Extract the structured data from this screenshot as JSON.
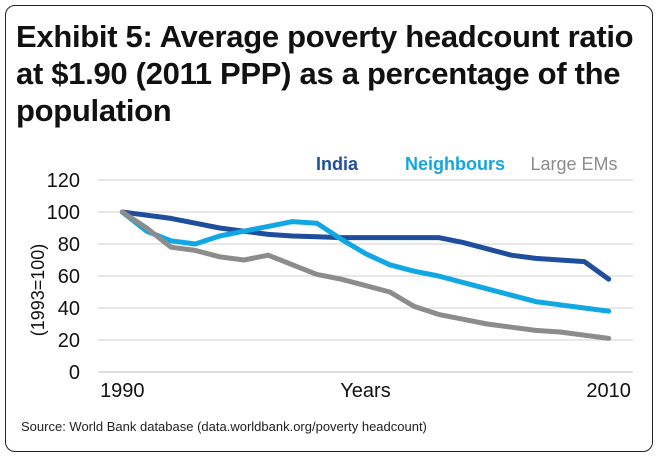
{
  "title": "Exhibit 5: Average poverty headcount ratio at $1.90 (2011 PPP) as a percentage of the population",
  "source": "Source: World Bank database (data.worldbank.org/poverty headcount)",
  "colors": {
    "text": "#111111",
    "grid": "#d0d0d0"
  },
  "chart_data": {
    "type": "line",
    "title": "Exhibit 5: Average poverty headcount ratio at $1.90 (2011 PPP) as a percentage of the population",
    "xlabel": "Years",
    "ylabel": "(1993=100)",
    "xlim": [
      1989,
      2011
    ],
    "ylim": [
      0,
      120
    ],
    "x_ticks": [
      1990,
      2010
    ],
    "y_ticks": [
      0,
      20,
      40,
      60,
      80,
      100,
      120
    ],
    "grid": "horizontal",
    "legend_position": "top",
    "x": [
      1990,
      1991,
      1992,
      1993,
      1994,
      1995,
      1996,
      1997,
      1998,
      1999,
      2000,
      2001,
      2002,
      2003,
      2004,
      2005,
      2006,
      2007,
      2008,
      2009,
      2010
    ],
    "series": [
      {
        "name": "India",
        "color": "#1f4e9c",
        "values": [
          100,
          98,
          96,
          93,
          90,
          88,
          86,
          85,
          84.5,
          84,
          84,
          84,
          84,
          84,
          81,
          77,
          73,
          71,
          70,
          69,
          58
        ]
      },
      {
        "name": "Neighbours",
        "color": "#11a7e3",
        "values": [
          100,
          88,
          82,
          80,
          85,
          88,
          91,
          94,
          93,
          83,
          74,
          67,
          63,
          60,
          56,
          52,
          48,
          44,
          42,
          40,
          38
        ]
      },
      {
        "name": "Large EMs",
        "color": "#8c8c8c",
        "values": [
          100,
          90,
          78,
          76,
          72,
          70,
          73,
          67,
          61,
          58,
          54,
          50,
          41,
          36,
          33,
          30,
          28,
          26,
          25,
          23,
          21
        ]
      }
    ]
  }
}
